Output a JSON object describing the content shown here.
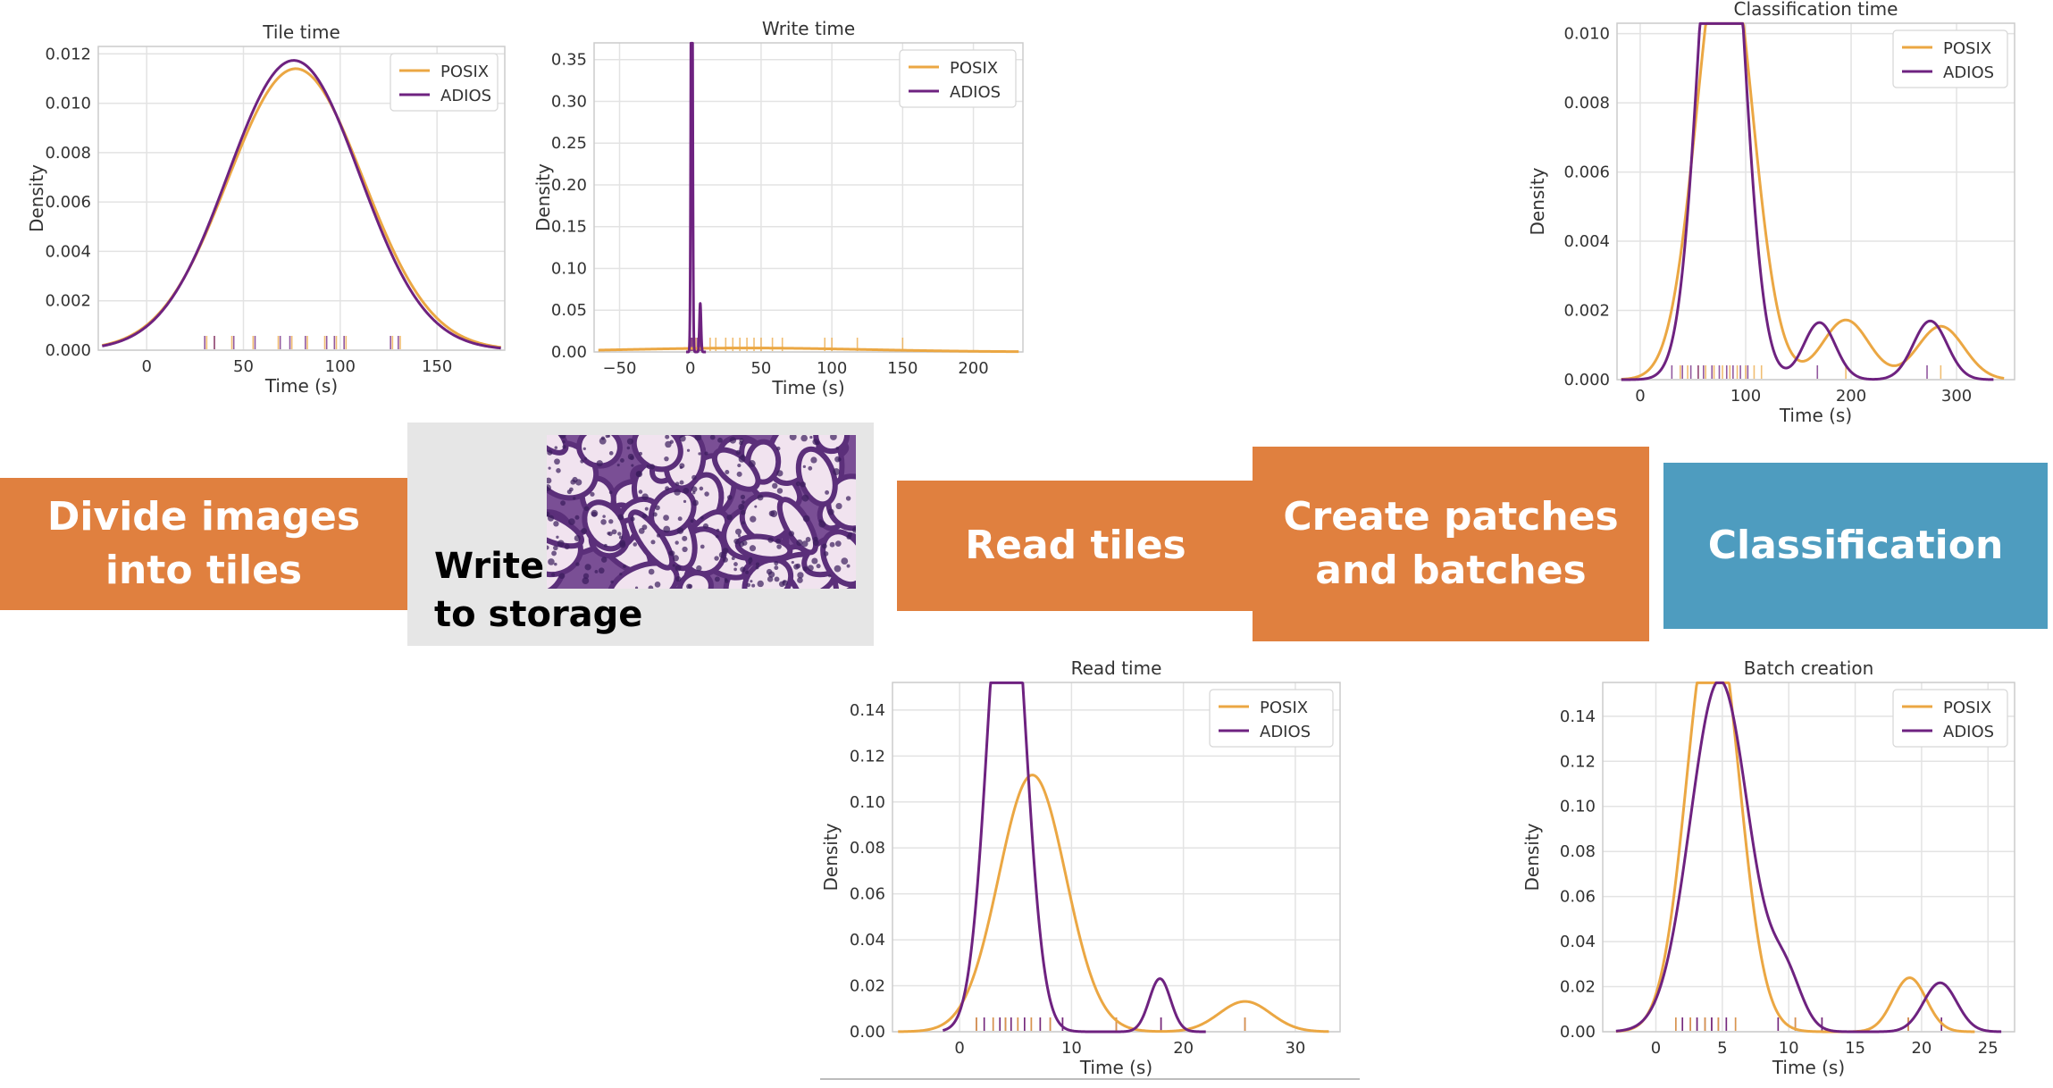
{
  "stages": {
    "divide": "Divide images into tiles",
    "write_line1": "Write",
    "write_line2": "to storage",
    "read": "Read tiles",
    "patches": "Create patches and batches",
    "classification": "Classification"
  },
  "colors": {
    "posix": "#eba743",
    "adios": "#6e2280",
    "stage_orange": "#e0803f",
    "stage_blue": "#4e9cbf",
    "write_panel": "#e6e6e6"
  },
  "tissue_image": "histology-tile-icon",
  "chart_data": [
    {
      "id": "tile",
      "type": "line",
      "title": "Tile time",
      "xlabel": "Time (s)",
      "ylabel": "Density",
      "xlim": [
        -25,
        185
      ],
      "ylim": [
        0,
        0.0123
      ],
      "xticks": [
        0,
        50,
        100,
        150
      ],
      "yticks": [
        0,
        0.002,
        0.004,
        0.006,
        0.008,
        0.01,
        0.012
      ],
      "ytick_labels": [
        "0.000",
        "0.002",
        "0.004",
        "0.006",
        "0.008",
        "0.010",
        "0.012"
      ],
      "legend": "top-right",
      "grid": true,
      "series": [
        {
          "name": "POSIX",
          "color": "#eba743",
          "components": [
            [
              77,
              35,
              1.0
            ]
          ],
          "range": [
            -23,
            183
          ],
          "rug": [
            31,
            35,
            44,
            55,
            68,
            75,
            83,
            92,
            98,
            103,
            127,
            131
          ]
        },
        {
          "name": "ADIOS",
          "color": "#6e2280",
          "components": [
            [
              76,
              34,
              1.0
            ]
          ],
          "range": [
            -23,
            183
          ],
          "rug": [
            30,
            35,
            45,
            56,
            69,
            74,
            82,
            93,
            97,
            102,
            126,
            130
          ]
        }
      ]
    },
    {
      "id": "write",
      "type": "line",
      "title": "Write time",
      "xlabel": "Time (s)",
      "ylabel": "Density",
      "xlim": [
        -68,
        235
      ],
      "ylim": [
        0,
        0.37
      ],
      "xticks": [
        -50,
        0,
        50,
        100,
        150,
        200
      ],
      "yticks": [
        0,
        0.05,
        0.1,
        0.15,
        0.2,
        0.25,
        0.3,
        0.35
      ],
      "ytick_labels": [
        "0.00",
        "0.05",
        "0.10",
        "0.15",
        "0.20",
        "0.25",
        "0.30",
        "0.35"
      ],
      "legend": "top-right",
      "grid": true,
      "series": [
        {
          "name": "POSIX",
          "color": "#eba743",
          "components": [
            [
              40,
              85,
              1.0
            ]
          ],
          "range": [
            -65,
            232
          ],
          "rug": [
            1,
            4,
            8,
            14,
            18,
            25,
            30,
            35,
            40,
            45,
            50,
            58,
            65,
            95,
            100,
            118,
            150
          ]
        },
        {
          "name": "ADIOS",
          "color": "#6e2280",
          "components": [
            [
              1,
              0.55,
              0.92
            ],
            [
              7,
              0.55,
              0.08
            ]
          ],
          "range": [
            -3,
            11
          ],
          "rug": [
            0,
            1,
            2,
            3,
            5,
            7,
            8
          ]
        }
      ]
    },
    {
      "id": "classification",
      "type": "line",
      "title": "Classification time",
      "xlabel": "Time (s)",
      "ylabel": "Density",
      "xlim": [
        -22,
        355
      ],
      "ylim": [
        0,
        0.0103
      ],
      "xticks": [
        0,
        100,
        200,
        300
      ],
      "yticks": [
        0,
        0.002,
        0.004,
        0.006,
        0.008,
        0.01
      ],
      "ytick_labels": [
        "0.000",
        "0.002",
        "0.004",
        "0.006",
        "0.008",
        "0.010"
      ],
      "legend": "top-right",
      "grid": true,
      "series": [
        {
          "name": "POSIX",
          "color": "#eba743",
          "components": [
            [
              80,
              26,
              0.85
            ],
            [
              195,
              22,
              0.095
            ],
            [
              285,
              22,
              0.085
            ]
          ],
          "range": [
            -18,
            345
          ],
          "rug": [
            38,
            45,
            55,
            62,
            70,
            78,
            85,
            92,
            100,
            108,
            115,
            195,
            285
          ]
        },
        {
          "name": "ADIOS",
          "color": "#6e2280",
          "components": [
            [
              77,
              20,
              0.87
            ],
            [
              170,
              15,
              0.062
            ],
            [
              275,
              16,
              0.068
            ]
          ],
          "range": [
            -18,
            335
          ],
          "rug": [
            30,
            40,
            48,
            55,
            60,
            68,
            75,
            82,
            88,
            95,
            102,
            168,
            272
          ]
        }
      ]
    },
    {
      "id": "read",
      "type": "line",
      "title": "Read time",
      "xlabel": "Time (s)",
      "ylabel": "Density",
      "xlim": [
        -6,
        34
      ],
      "ylim": [
        0,
        0.152
      ],
      "xticks": [
        0,
        10,
        20,
        30
      ],
      "yticks": [
        0,
        0.02,
        0.04,
        0.06,
        0.08,
        0.1,
        0.12,
        0.14
      ],
      "ytick_labels": [
        "0.00",
        "0.02",
        "0.04",
        "0.06",
        "0.08",
        "0.10",
        "0.12",
        "0.14"
      ],
      "legend": "top-right",
      "grid": true,
      "series": [
        {
          "name": "POSIX",
          "color": "#eba743",
          "components": [
            [
              6.5,
              3.0,
              0.84
            ],
            [
              25.5,
              2.3,
              0.076
            ]
          ],
          "range": [
            -5.5,
            33
          ]
        },
        {
          "name": "ADIOS",
          "color": "#6e2280",
          "components": [
            [
              4.2,
              1.65,
              0.92
            ],
            [
              17.9,
              0.95,
              0.055
            ]
          ],
          "range": [
            -1.5,
            22
          ]
        }
      ],
      "rug": [
        1.5,
        2.2,
        3,
        3.6,
        4.1,
        4.6,
        5.2,
        5.8,
        6.4,
        7.2,
        8.1,
        9.2,
        14,
        18,
        25.5
      ]
    },
    {
      "id": "batch",
      "type": "line",
      "title": "Batch creation",
      "xlabel": "Time (s)",
      "ylabel": "Density",
      "xlim": [
        -4,
        27
      ],
      "ylim": [
        0,
        0.155
      ],
      "xticks": [
        0,
        5,
        10,
        15,
        20,
        25
      ],
      "yticks": [
        0,
        0.02,
        0.04,
        0.06,
        0.08,
        0.1,
        0.12,
        0.14
      ],
      "ytick_labels": [
        "0.00",
        "0.02",
        "0.04",
        "0.06",
        "0.08",
        "0.10",
        "0.12",
        "0.14"
      ],
      "legend": "top-right",
      "grid": true,
      "series": [
        {
          "name": "POSIX",
          "color": "#eba743",
          "components": [
            [
              4.3,
              1.95,
              0.92
            ],
            [
              19.1,
              1.25,
              0.075
            ]
          ],
          "range": [
            -3,
            24
          ]
        },
        {
          "name": "ADIOS",
          "color": "#6e2280",
          "components": [
            [
              4.8,
              2.2,
              0.86
            ],
            [
              9.8,
              1.2,
              0.065
            ],
            [
              21.4,
              1.25,
              0.068
            ]
          ],
          "range": [
            -3,
            26
          ]
        }
      ],
      "rug": [
        1.5,
        2,
        2.6,
        3.1,
        3.7,
        4.2,
        4.7,
        5.3,
        6,
        9.2,
        10.5,
        12.5,
        19,
        21.5
      ]
    }
  ]
}
